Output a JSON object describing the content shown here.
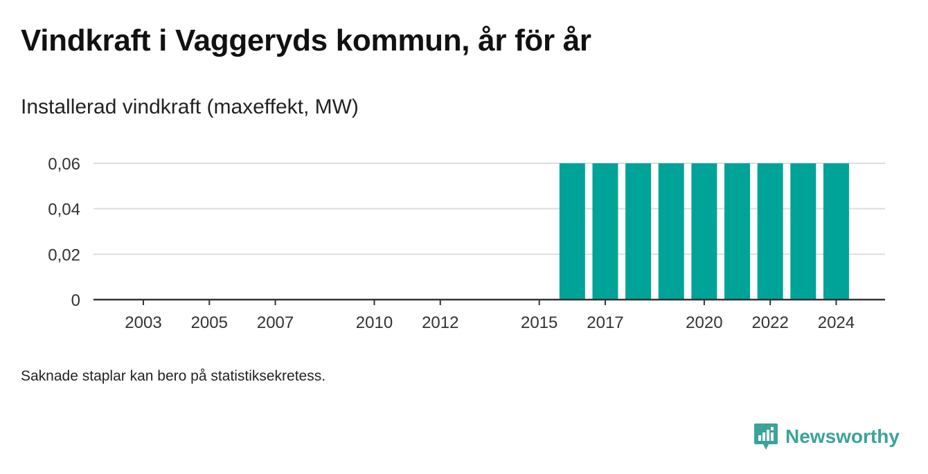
{
  "header": {
    "title": "Vindkraft i Vaggeryds kommun, år för år",
    "subtitle": "Installerad vindkraft (maxeffekt, MW)"
  },
  "footer": {
    "note": "Saknade staplar kan bero på statistiksekretess.",
    "brand": "Newsworthy",
    "brand_icon": "bar-chart-speech-bubble-icon"
  },
  "colors": {
    "bar": "#00a398",
    "grid": "#dddddd",
    "axis": "#333333",
    "brand": "#3aa39a"
  },
  "chart_data": {
    "type": "bar",
    "title": "Vindkraft i Vaggeryds kommun, år för år",
    "ylabel": "Installerad vindkraft (maxeffekt, MW)",
    "xlabel": "",
    "xlim": [
      2002,
      2025
    ],
    "ylim": [
      0,
      0.06
    ],
    "y_ticks": [
      0,
      0.02,
      0.04,
      0.06
    ],
    "y_tick_labels": [
      "0",
      "0,02",
      "0,04",
      "0,06"
    ],
    "x_ticks": [
      2003,
      2005,
      2007,
      2010,
      2012,
      2015,
      2017,
      2020,
      2022,
      2024
    ],
    "x_tick_labels": [
      "2003",
      "2005",
      "2007",
      "2010",
      "2012",
      "2015",
      "2017",
      "2020",
      "2022",
      "2024"
    ],
    "categories": [
      2016,
      2017,
      2018,
      2019,
      2020,
      2021,
      2022,
      2023,
      2024
    ],
    "values": [
      0.06,
      0.06,
      0.06,
      0.06,
      0.06,
      0.06,
      0.06,
      0.06,
      0.06
    ],
    "grid": true,
    "legend": "none"
  }
}
